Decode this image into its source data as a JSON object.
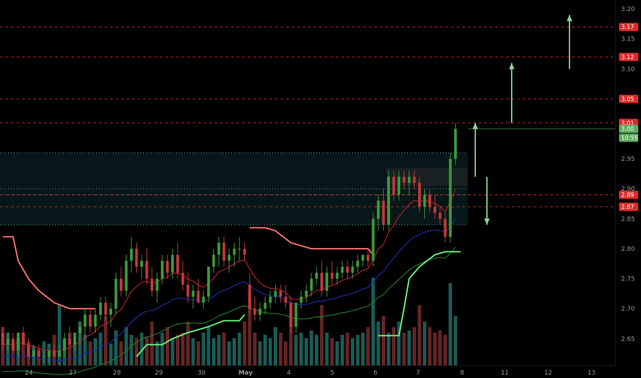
{
  "colors": {
    "background": "#000000",
    "bull": "#26a69a",
    "bull_candle": "#3a9a3a",
    "bear_candle": "#c0393b",
    "price_line_red": "#ff3b3b",
    "current_price": "#5eaa5e",
    "stop_upper": "#ff6f6f",
    "stop_lower": "#69f07b",
    "ema_fast": "#b22222",
    "ema_mid": "#1a2aa8",
    "ema_slow": "#1e7a2a",
    "zone": "#0c2a2e",
    "arrow": "#8fd39a"
  },
  "chart_data": {
    "type": "candlestick",
    "title": "",
    "xlabel": "",
    "ylabel": "",
    "ylim": [
      2.605,
      3.215
    ],
    "y_ticks": [
      "3.20",
      "3.15",
      "3.10",
      "2.95",
      "2.90",
      "2.85",
      "2.80",
      "2.75",
      "2.70",
      "2.65"
    ],
    "x_ticks": [
      "24",
      "27",
      "28",
      "29",
      "30",
      "May",
      "4",
      "5",
      "6",
      "7",
      "8",
      "11",
      "12",
      "13"
    ],
    "price_levels": [
      "3.17",
      "3.12",
      "3.05",
      "3.01",
      "2.89",
      "2.87"
    ],
    "current_price": "3.00",
    "countdown": "10:55",
    "zone": {
      "from": 2.84,
      "to": 2.96
    },
    "dotted_levels": [
      2.96,
      2.9,
      2.89,
      2.84
    ],
    "arrows": [
      {
        "direction": "up",
        "from": 2.92,
        "to": 3.01
      },
      {
        "direction": "down",
        "from": 2.92,
        "to": 2.84
      },
      {
        "direction": "up",
        "from": 3.01,
        "to": 3.11
      },
      {
        "direction": "up",
        "from": 3.1,
        "to": 3.19
      }
    ],
    "candles": [
      [
        2.66,
        2.67,
        2.63,
        2.64
      ],
      [
        2.64,
        2.66,
        2.63,
        2.65
      ],
      [
        2.65,
        2.66,
        2.63,
        2.63
      ],
      [
        2.63,
        2.66,
        2.62,
        2.66
      ],
      [
        2.66,
        2.67,
        2.64,
        2.64
      ],
      [
        2.64,
        2.65,
        2.62,
        2.62
      ],
      [
        2.62,
        2.64,
        2.62,
        2.63
      ],
      [
        2.63,
        2.64,
        2.62,
        2.62
      ],
      [
        2.62,
        2.63,
        2.61,
        2.62
      ],
      [
        2.62,
        2.63,
        2.61,
        2.63
      ],
      [
        2.63,
        2.64,
        2.62,
        2.62
      ],
      [
        2.62,
        2.64,
        2.62,
        2.63
      ],
      [
        2.63,
        2.66,
        2.62,
        2.65
      ],
      [
        2.65,
        2.67,
        2.64,
        2.64
      ],
      [
        2.64,
        2.66,
        2.63,
        2.66
      ],
      [
        2.66,
        2.68,
        2.64,
        2.67
      ],
      [
        2.67,
        2.7,
        2.65,
        2.69
      ],
      [
        2.69,
        2.7,
        2.66,
        2.67
      ],
      [
        2.67,
        2.7,
        2.66,
        2.69
      ],
      [
        2.69,
        2.72,
        2.68,
        2.71
      ],
      [
        2.71,
        2.72,
        2.68,
        2.69
      ],
      [
        2.69,
        2.71,
        2.67,
        2.7
      ],
      [
        2.7,
        2.76,
        2.69,
        2.75
      ],
      [
        2.75,
        2.77,
        2.72,
        2.73
      ],
      [
        2.73,
        2.79,
        2.72,
        2.78
      ],
      [
        2.78,
        2.82,
        2.76,
        2.8
      ],
      [
        2.8,
        2.81,
        2.76,
        2.77
      ],
      [
        2.77,
        2.79,
        2.75,
        2.78
      ],
      [
        2.78,
        2.8,
        2.74,
        2.75
      ],
      [
        2.75,
        2.77,
        2.72,
        2.73
      ],
      [
        2.73,
        2.76,
        2.71,
        2.75
      ],
      [
        2.75,
        2.79,
        2.74,
        2.78
      ],
      [
        2.78,
        2.79,
        2.75,
        2.76
      ],
      [
        2.76,
        2.8,
        2.75,
        2.79
      ],
      [
        2.79,
        2.81,
        2.75,
        2.76
      ],
      [
        2.76,
        2.78,
        2.73,
        2.74
      ],
      [
        2.74,
        2.76,
        2.71,
        2.72
      ],
      [
        2.72,
        2.74,
        2.7,
        2.73
      ],
      [
        2.73,
        2.75,
        2.71,
        2.71
      ],
      [
        2.71,
        2.73,
        2.7,
        2.72
      ],
      [
        2.72,
        2.77,
        2.71,
        2.77
      ],
      [
        2.77,
        2.8,
        2.76,
        2.79
      ],
      [
        2.79,
        2.82,
        2.77,
        2.81
      ],
      [
        2.81,
        2.82,
        2.77,
        2.78
      ],
      [
        2.78,
        2.8,
        2.76,
        2.79
      ],
      [
        2.79,
        2.81,
        2.77,
        2.8
      ],
      [
        2.8,
        2.82,
        2.78,
        2.8
      ],
      [
        2.8,
        2.81,
        2.78,
        2.79
      ],
      [
        2.74,
        2.76,
        2.69,
        2.7
      ],
      [
        2.7,
        2.72,
        2.68,
        2.69
      ],
      [
        2.69,
        2.71,
        2.68,
        2.7
      ],
      [
        2.7,
        2.72,
        2.69,
        2.71
      ],
      [
        2.71,
        2.73,
        2.7,
        2.72
      ],
      [
        2.72,
        2.74,
        2.71,
        2.73
      ],
      [
        2.73,
        2.74,
        2.71,
        2.72
      ],
      [
        2.72,
        2.74,
        2.7,
        2.71
      ],
      [
        2.71,
        2.72,
        2.66,
        2.67
      ],
      [
        2.67,
        2.71,
        2.66,
        2.71
      ],
      [
        2.71,
        2.73,
        2.7,
        2.72
      ],
      [
        2.72,
        2.74,
        2.71,
        2.73
      ],
      [
        2.73,
        2.76,
        2.72,
        2.75
      ],
      [
        2.75,
        2.77,
        2.74,
        2.76
      ],
      [
        2.76,
        2.78,
        2.72,
        2.73
      ],
      [
        2.73,
        2.77,
        2.72,
        2.76
      ],
      [
        2.76,
        2.78,
        2.74,
        2.75
      ],
      [
        2.75,
        2.77,
        2.74,
        2.76
      ],
      [
        2.76,
        2.78,
        2.75,
        2.77
      ],
      [
        2.77,
        2.78,
        2.75,
        2.76
      ],
      [
        2.76,
        2.78,
        2.75,
        2.77
      ],
      [
        2.77,
        2.79,
        2.76,
        2.78
      ],
      [
        2.78,
        2.79,
        2.77,
        2.79
      ],
      [
        2.79,
        2.8,
        2.77,
        2.78
      ],
      [
        2.78,
        2.86,
        2.77,
        2.85
      ],
      [
        2.85,
        2.89,
        2.83,
        2.88
      ],
      [
        2.88,
        2.9,
        2.83,
        2.84
      ],
      [
        2.84,
        2.93,
        2.83,
        2.92
      ],
      [
        2.92,
        2.93,
        2.88,
        2.89
      ],
      [
        2.89,
        2.93,
        2.88,
        2.92
      ],
      [
        2.92,
        2.93,
        2.9,
        2.91
      ],
      [
        2.91,
        2.93,
        2.89,
        2.92
      ],
      [
        2.92,
        2.93,
        2.9,
        2.91
      ],
      [
        2.91,
        2.92,
        2.86,
        2.87
      ],
      [
        2.87,
        2.9,
        2.85,
        2.89
      ],
      [
        2.89,
        2.9,
        2.86,
        2.87
      ],
      [
        2.87,
        2.89,
        2.85,
        2.86
      ],
      [
        2.86,
        2.87,
        2.84,
        2.85
      ],
      [
        2.85,
        2.86,
        2.81,
        2.82
      ],
      [
        2.82,
        2.96,
        2.81,
        2.95
      ],
      [
        2.95,
        3.01,
        2.94,
        3.0
      ]
    ],
    "volumes": [
      0.35,
      0.3,
      0.2,
      0.25,
      0.3,
      0.22,
      0.18,
      0.15,
      0.22,
      0.2,
      0.28,
      0.55,
      0.25,
      0.3,
      0.22,
      0.4,
      0.28,
      0.22,
      0.25,
      0.3,
      0.45,
      0.2,
      0.32,
      0.22,
      0.35,
      0.28,
      0.25,
      0.3,
      0.26,
      0.4,
      0.22,
      0.3,
      0.35,
      0.25,
      0.28,
      0.3,
      0.4,
      0.25,
      0.22,
      0.3,
      0.35,
      0.25,
      0.28,
      0.3,
      0.22,
      0.25,
      0.3,
      0.4,
      0.65,
      0.3,
      0.22,
      0.28,
      0.25,
      0.35,
      0.3,
      0.22,
      0.55,
      0.28,
      0.3,
      0.25,
      0.32,
      0.28,
      0.55,
      0.3,
      0.25,
      0.22,
      0.28,
      0.3,
      0.25,
      0.28,
      0.3,
      0.35,
      0.8,
      0.4,
      0.45,
      0.3,
      0.35,
      0.4,
      0.3,
      0.32,
      0.35,
      0.55,
      0.4,
      0.35,
      0.3,
      0.32,
      0.28,
      0.75,
      0.45
    ]
  }
}
